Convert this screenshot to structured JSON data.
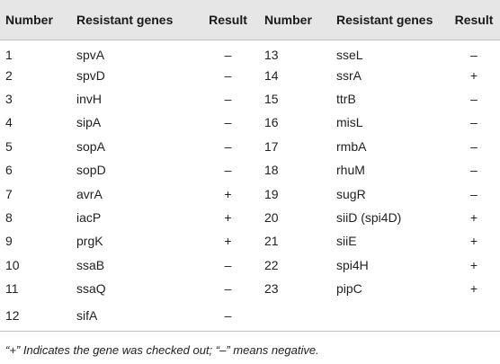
{
  "table": {
    "headers": [
      "Number",
      "Resistant genes",
      "Result",
      "Number",
      "Resistant genes",
      "Result"
    ],
    "rows": [
      {
        "num1": "1",
        "gene1": "spvA",
        "res1": "–",
        "num2": "13",
        "gene2": "sseL",
        "res2": "–"
      },
      {
        "num1": "2",
        "gene1": "spvD",
        "res1": "–",
        "num2": "14",
        "gene2": "ssrA",
        "res2": "+"
      },
      {
        "num1": "3",
        "gene1": "invH",
        "res1": "–",
        "num2": "15",
        "gene2": "ttrB",
        "res2": "–"
      },
      {
        "num1": "4",
        "gene1": "sipA",
        "res1": "–",
        "num2": "16",
        "gene2": "misL",
        "res2": "–"
      },
      {
        "num1": "5",
        "gene1": "sopA",
        "res1": "–",
        "num2": "17",
        "gene2": "rmbA",
        "res2": "–"
      },
      {
        "num1": "6",
        "gene1": "sopD",
        "res1": "–",
        "num2": "18",
        "gene2": "rhuM",
        "res2": "–"
      },
      {
        "num1": "7",
        "gene1": "avrA",
        "res1": "+",
        "num2": "19",
        "gene2": "sugR",
        "res2": "–"
      },
      {
        "num1": "8",
        "gene1": "iacP",
        "res1": "+",
        "num2": "20",
        "gene2": "siiD (spi4D)",
        "res2": "+"
      },
      {
        "num1": "9",
        "gene1": "prgK",
        "res1": "+",
        "num2": "21",
        "gene2": "siiE",
        "res2": "+"
      },
      {
        "num1": "10",
        "gene1": "ssaB",
        "res1": "–",
        "num2": "22",
        "gene2": "spi4H",
        "res2": "+"
      },
      {
        "num1": "11",
        "gene1": "ssaQ",
        "res1": "–",
        "num2": "23",
        "gene2": "pipC",
        "res2": "+"
      },
      {
        "num1": "12",
        "gene1": "sifA",
        "res1": "–",
        "num2": "",
        "gene2": "",
        "res2": ""
      }
    ]
  },
  "footnote": "“+” Indicates the gene was checked out; “–” means negative."
}
